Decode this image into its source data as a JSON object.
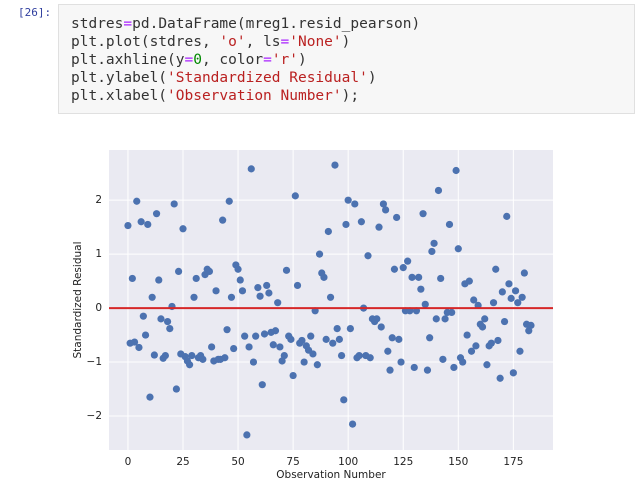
{
  "prompt": "[26]:",
  "code": {
    "colors": {
      "plain": "#333333",
      "op": "#aa22ff",
      "str": "#ba2121",
      "num": "#008800"
    },
    "lines": [
      [
        {
          "t": "stdres",
          "k": "plain"
        },
        {
          "t": "=",
          "k": "op"
        },
        {
          "t": "pd.DataFrame(mreg1.resid_pearson)",
          "k": "plain"
        }
      ],
      [
        {
          "t": "plt.plot(stdres, ",
          "k": "plain"
        },
        {
          "t": "'o'",
          "k": "str"
        },
        {
          "t": ", ls",
          "k": "plain"
        },
        {
          "t": "=",
          "k": "op"
        },
        {
          "t": "'None'",
          "k": "str"
        },
        {
          "t": ")",
          "k": "plain"
        }
      ],
      [
        {
          "t": "plt.axhline(y",
          "k": "plain"
        },
        {
          "t": "=",
          "k": "op"
        },
        {
          "t": "0",
          "k": "num"
        },
        {
          "t": ", color",
          "k": "plain"
        },
        {
          "t": "=",
          "k": "op"
        },
        {
          "t": "'r'",
          "k": "str"
        },
        {
          "t": ")",
          "k": "plain"
        }
      ],
      [
        {
          "t": "plt.ylabel(",
          "k": "plain"
        },
        {
          "t": "'Standardized Residual'",
          "k": "str"
        },
        {
          "t": ")",
          "k": "plain"
        }
      ],
      [
        {
          "t": "plt.xlabel(",
          "k": "plain"
        },
        {
          "t": "'Observation Number'",
          "k": "str"
        },
        {
          "t": ");",
          "k": "plain"
        }
      ]
    ]
  },
  "chart_data": {
    "type": "scatter",
    "xlabel": "Observation Number",
    "ylabel": "Standardized Residual",
    "color": "#4c72b0",
    "background": "#eaeaf2",
    "grid": true,
    "hline": {
      "y": 0,
      "color": "#d62728"
    },
    "xlim": [
      -8.6,
      193
    ],
    "ylim": [
      -2.63,
      2.93
    ],
    "xticks": [
      0,
      25,
      50,
      75,
      100,
      125,
      150,
      175
    ],
    "yticks": [
      {
        "value": -2,
        "label": "−2"
      },
      {
        "value": -1,
        "label": "−1"
      },
      0,
      1,
      2
    ],
    "x": [
      0,
      1,
      2,
      3,
      4,
      5,
      6,
      7,
      8,
      9,
      10,
      11,
      12,
      13,
      14,
      15,
      16,
      17,
      18,
      19,
      20,
      21,
      22,
      23,
      24,
      25,
      26,
      27,
      28,
      29,
      30,
      31,
      32,
      33,
      34,
      35,
      36,
      37,
      38,
      39,
      40,
      41,
      42,
      43,
      44,
      45,
      46,
      47,
      48,
      49,
      50,
      51,
      52,
      53,
      54,
      55,
      56,
      57,
      58,
      59,
      60,
      61,
      62,
      63,
      64,
      65,
      66,
      67,
      68,
      69,
      70,
      71,
      72,
      73,
      74,
      75,
      76,
      77,
      78,
      79,
      80,
      81,
      82,
      83,
      84,
      85,
      86,
      87,
      88,
      89,
      90,
      91,
      92,
      93,
      94,
      95,
      96,
      97,
      98,
      99,
      100,
      101,
      102,
      103,
      104,
      105,
      106,
      107,
      108,
      109,
      110,
      111,
      112,
      113,
      114,
      115,
      116,
      117,
      118,
      119,
      120,
      121,
      122,
      123,
      124,
      125,
      126,
      127,
      128,
      129,
      130,
      131,
      132,
      133,
      134,
      135,
      136,
      137,
      138,
      139,
      140,
      141,
      142,
      143,
      144,
      145,
      146,
      147,
      148,
      149,
      150,
      151,
      152,
      153,
      154,
      155,
      156,
      157,
      158,
      159,
      160,
      161,
      162,
      163,
      164,
      165,
      166,
      167,
      168,
      169,
      170,
      171,
      172,
      173,
      174,
      175,
      176,
      177,
      178,
      179,
      180,
      181,
      182,
      183
    ],
    "values": [
      1.53,
      -0.65,
      0.55,
      -0.63,
      1.98,
      -0.73,
      1.6,
      -0.15,
      -0.5,
      1.55,
      -1.65,
      0.2,
      -0.87,
      1.75,
      0.52,
      -0.2,
      -0.93,
      -0.88,
      -0.25,
      -0.38,
      0.03,
      1.93,
      -1.5,
      0.68,
      -0.85,
      1.47,
      -0.9,
      -0.98,
      -1.05,
      -0.88,
      0.2,
      0.55,
      -0.92,
      -0.88,
      -0.95,
      0.62,
      0.72,
      0.68,
      -0.72,
      -0.98,
      0.32,
      -0.95,
      -0.95,
      1.63,
      -0.92,
      -0.4,
      1.98,
      0.2,
      -0.75,
      0.8,
      0.72,
      0.52,
      0.32,
      -0.52,
      -2.35,
      -0.72,
      2.58,
      -1.0,
      -0.52,
      0.38,
      0.22,
      -1.42,
      -0.48,
      0.42,
      0.28,
      -0.45,
      -0.68,
      -0.42,
      0.1,
      -0.72,
      -0.98,
      -0.88,
      0.7,
      -0.52,
      -0.58,
      -1.25,
      2.08,
      0.42,
      -0.65,
      -0.6,
      -1.0,
      -0.7,
      -0.78,
      -0.52,
      -0.85,
      -0.05,
      -1.05,
      1.0,
      0.65,
      0.57,
      -0.58,
      1.42,
      0.2,
      -0.65,
      2.65,
      -0.38,
      -0.58,
      -0.88,
      -1.7,
      1.55,
      2.0,
      -0.38,
      -2.15,
      1.93,
      -0.92,
      -0.88,
      1.6,
      0.0,
      -0.88,
      0.97,
      -0.92,
      -0.2,
      -0.25,
      -0.2,
      1.5,
      -0.35,
      1.93,
      1.82,
      -0.8,
      -1.15,
      -0.55,
      0.72,
      1.68,
      -0.58,
      -1.0,
      0.75,
      -0.05,
      0.87,
      -0.05,
      0.57,
      -1.1,
      -0.05,
      0.57,
      0.35,
      1.75,
      0.07,
      -1.15,
      -0.55,
      1.05,
      1.2,
      -0.2,
      2.18,
      0.55,
      -0.95,
      -0.2,
      -0.08,
      1.55,
      -0.08,
      -1.1,
      2.55,
      1.1,
      -0.92,
      -1.0,
      0.45,
      -0.5,
      0.5,
      -0.8,
      0.15,
      -0.7,
      0.05,
      -0.3,
      -0.35,
      -0.2,
      -1.05,
      -0.7,
      -0.65,
      0.1,
      0.72,
      -0.6,
      -1.3,
      0.3,
      -0.25,
      1.7,
      0.45,
      0.18,
      -1.2,
      0.32,
      0.1,
      -0.8,
      0.2,
      0.65,
      -0.3,
      -0.42,
      -0.32
    ]
  }
}
